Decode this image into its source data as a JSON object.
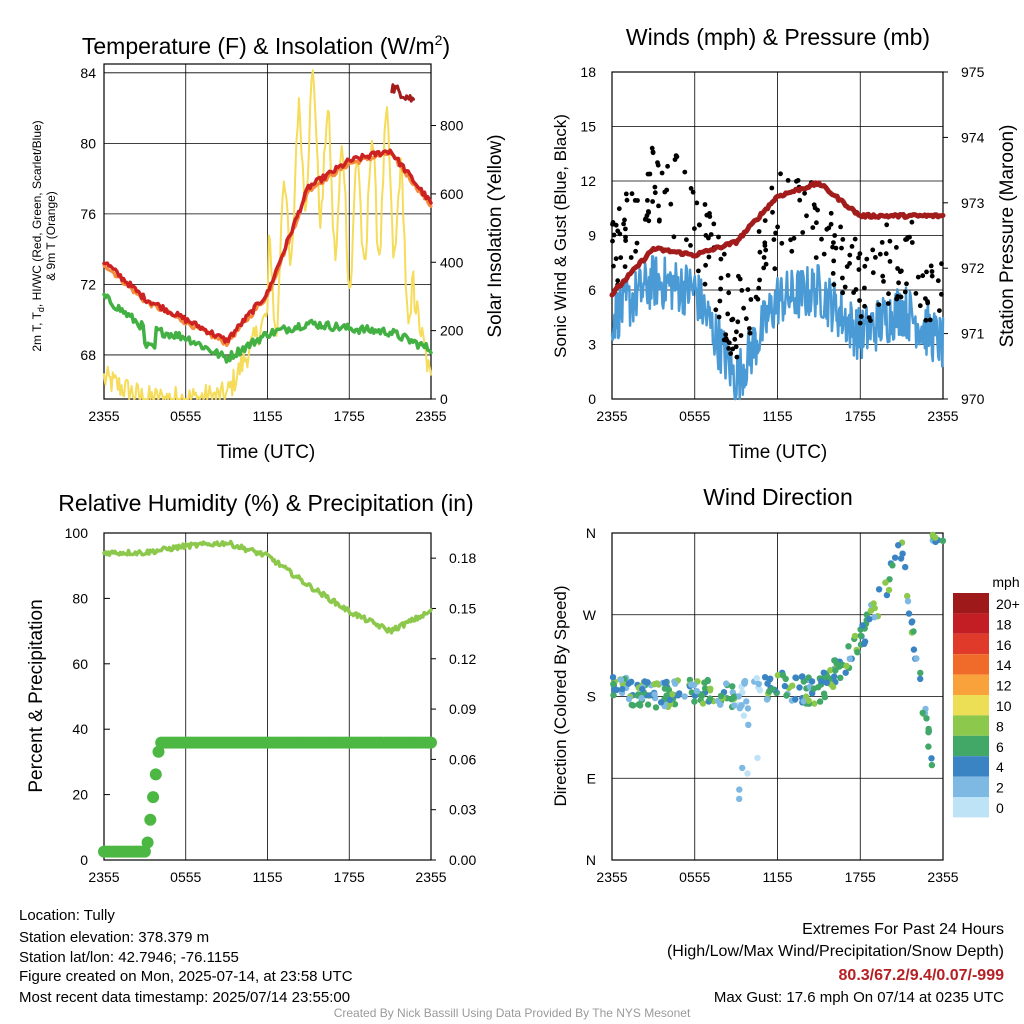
{
  "palette": {
    "temp": "#cc2222",
    "dewpoint": "#42b043",
    "heatindex": "#e3442a",
    "temp9m": "#f58c3c",
    "solar": "#f5dc5a",
    "wind": "#4a9ad6",
    "gust": "#000000",
    "pressure": "#a31c1c",
    "rh": "#8cc84b",
    "precip": "#4cb843",
    "highlight": "#b52025"
  },
  "panels": {
    "temp": {
      "title_main": "Temperature (F) & Insolation (W/m",
      "title_sup": "2",
      "title_end": ")",
      "ylabel_line1": "2m T, T",
      "ylabel_sub": "d",
      "ylabel_rest": ", HI/WC (Red, Green, Scarlet/Blue)",
      "ylabel_line2": "& 9m T (Orange)",
      "y2label": "Solar Insolation (Yellow)",
      "xlabel": "Time (UTC)",
      "xticks": [
        "2355",
        "0555",
        "1155",
        "1755",
        "2355"
      ],
      "yticks": [
        "68",
        "72",
        "76",
        "80",
        "84"
      ],
      "y2ticks": [
        "0",
        "200",
        "400",
        "600",
        "800"
      ]
    },
    "wind": {
      "title": "Winds (mph) & Pressure (mb)",
      "ylabel": "Sonic Wind & Gust (Blue, Black)",
      "y2label": "Station Pressure (Maroon)",
      "xlabel": "Time (UTC)",
      "xticks": [
        "2355",
        "0555",
        "1155",
        "1755",
        "2355"
      ],
      "yticks": [
        "0",
        "3",
        "6",
        "9",
        "12",
        "15",
        "18"
      ],
      "y2ticks": [
        "970",
        "971",
        "972",
        "973",
        "974",
        "975"
      ]
    },
    "rh": {
      "title": "Relative Humidity (%) & Precipitation (in)",
      "ylabel": "Percent & Precipitation",
      "xticks": [
        "2355",
        "0555",
        "1155",
        "1755",
        "2355"
      ],
      "yticks": [
        "0",
        "20",
        "40",
        "60",
        "80",
        "100"
      ],
      "y2ticks": [
        "0.00",
        "0.03",
        "0.06",
        "0.09",
        "0.12",
        "0.15",
        "0.18"
      ]
    },
    "dir": {
      "title": "Wind Direction",
      "ylabel": "Direction (Colored By Speed)",
      "xticks": [
        "2355",
        "0555",
        "1155",
        "1755",
        "2355"
      ],
      "yticks": [
        "N",
        "E",
        "S",
        "W",
        "N"
      ],
      "legend_title": "mph",
      "legend_labels": [
        "20+",
        "18",
        "16",
        "14",
        "12",
        "10",
        "8",
        "6",
        "4",
        "2",
        "0"
      ],
      "legend_colors": [
        "#9e1a1a",
        "#c41e25",
        "#e03a2a",
        "#f06a2a",
        "#f9a23c",
        "#ecde55",
        "#8cc84b",
        "#42a868",
        "#3b84c4",
        "#7db9e3",
        "#bfe3f6"
      ]
    }
  },
  "chart_data": [
    {
      "type": "line",
      "title": "Temperature (F) & Insolation (W/m2)",
      "xlabel": "Time (UTC)",
      "ylabel": "2m T, Td, HI/WC (Red, Green, Scarlet/Blue) & 9m T (Orange)",
      "y2label": "Solar Insolation (Yellow)",
      "x": [
        "2355",
        "0255",
        "0555",
        "0855",
        "1155",
        "1455",
        "1755",
        "2055",
        "2355"
      ],
      "series": [
        {
          "name": "2m T",
          "values": [
            73.3,
            71.2,
            70.0,
            68.8,
            71.5,
            77.5,
            79.0,
            79.6,
            76.6
          ]
        },
        {
          "name": "Td",
          "values": [
            71.3,
            69.5,
            69.0,
            67.8,
            69.2,
            69.8,
            69.5,
            69.3,
            68.3
          ]
        },
        {
          "name": "Solar Insolation",
          "axis": "right",
          "values": [
            60,
            0,
            0,
            10,
            250,
            800,
            500,
            650,
            50
          ]
        }
      ],
      "ylim": [
        65.5,
        84.5
      ],
      "y2lim": [
        0,
        980
      ]
    },
    {
      "type": "line",
      "title": "Winds (mph) & Pressure (mb)",
      "xlabel": "Time (UTC)",
      "ylabel": "Sonic Wind & Gust (Blue, Black)",
      "y2label": "Station Pressure (Maroon)",
      "x": [
        "2355",
        "0255",
        "0555",
        "0855",
        "1155",
        "1455",
        "1755",
        "2055",
        "2355"
      ],
      "series": [
        {
          "name": "Sonic Wind",
          "values": [
            4.5,
            6.5,
            6.0,
            1.0,
            5.5,
            6.0,
            3.5,
            5.0,
            3.0
          ]
        },
        {
          "name": "Gust",
          "values": [
            6.5,
            11.0,
            9.0,
            3.0,
            9.0,
            8.5,
            5.0,
            7.0,
            4.0
          ]
        },
        {
          "name": "Station Pressure",
          "axis": "right",
          "values": [
            971.6,
            972.3,
            972.2,
            972.4,
            973.1,
            973.3,
            972.8,
            972.8,
            972.8
          ]
        }
      ],
      "ylim": [
        0,
        18
      ],
      "y2lim": [
        970,
        975
      ]
    },
    {
      "type": "line",
      "title": "Relative Humidity (%) & Precipitation (in)",
      "ylabel": "Percent & Precipitation",
      "x": [
        "2355",
        "0255",
        "0555",
        "0855",
        "1155",
        "1455",
        "1755",
        "2055",
        "2355"
      ],
      "series": [
        {
          "name": "Relative Humidity",
          "values": [
            94,
            94,
            96,
            97,
            93,
            84,
            76,
            70,
            76
          ]
        },
        {
          "name": "Precipitation",
          "axis": "right",
          "values": [
            0.0,
            0.07,
            0.07,
            0.07,
            0.07,
            0.07,
            0.07,
            0.07,
            0.07
          ]
        }
      ],
      "ylim": [
        0,
        100
      ],
      "y2lim": [
        0,
        0.195
      ]
    },
    {
      "type": "scatter",
      "title": "Wind Direction",
      "ylabel": "Direction (Colored By Speed)",
      "x": [
        "2355",
        "0255",
        "0555",
        "0855",
        "1155",
        "1455",
        "1755",
        "2055",
        "2355"
      ],
      "series": [
        {
          "name": "Direction (deg)",
          "values": [
            190,
            180,
            185,
            180,
            192,
            185,
            240,
            340,
            20
          ]
        }
      ],
      "yticks": [
        "N",
        "E",
        "S",
        "W",
        "N"
      ]
    }
  ],
  "footer": {
    "location": "Location: Tully",
    "elevation": "Station elevation: 378.379 m",
    "latlon": "Station lat/lon: 42.7946; -76.1155",
    "created": "Figure created on Mon, 2025-07-14, at 23:58 UTC",
    "recent": "Most recent data timestamp: 2025/07/14 23:55:00",
    "extremes_title": "Extremes For Past 24 Hours",
    "extremes_sub": "(High/Low/Max Wind/Precipitation/Snow Depth)",
    "extremes_values": "80.3/67.2/9.4/0.07/-999",
    "max_gust": "Max Gust: 17.6 mph On 07/14 at 0235 UTC",
    "credit": "Created By Nick Bassill Using Data Provided By The NYS Mesonet"
  }
}
